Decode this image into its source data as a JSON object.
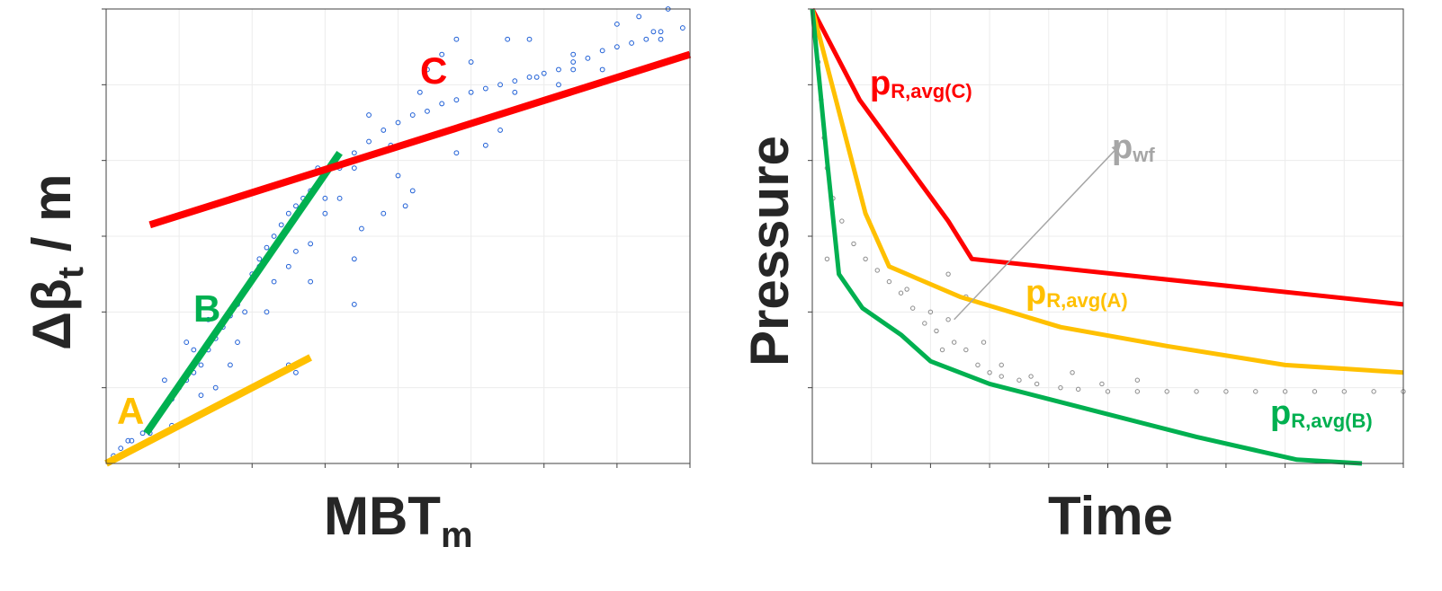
{
  "chart_data": [
    {
      "type": "scatter",
      "title": "",
      "xlabel": "MBT",
      "xlabel_sub": "m",
      "ylabel": "Δβ",
      "ylabel_sub": "t",
      "ylabel_tail": " / m",
      "xlim": [
        0,
        8
      ],
      "ylim": [
        0,
        6
      ],
      "x_ticks": [
        1,
        2,
        3,
        4,
        5,
        6,
        7,
        8
      ],
      "y_ticks": [
        1,
        2,
        3,
        4,
        5,
        6
      ],
      "grid": true,
      "tick_labels_shown": false,
      "scatter": {
        "name": "measured data",
        "color": "#1f5fd6",
        "points": [
          [
            0.1,
            0.1
          ],
          [
            0.2,
            0.2
          ],
          [
            0.35,
            0.3
          ],
          [
            0.5,
            0.4
          ],
          [
            0.6,
            0.45
          ],
          [
            0.7,
            0.6
          ],
          [
            0.8,
            0.75
          ],
          [
            0.9,
            0.85
          ],
          [
            1.0,
            1.0
          ],
          [
            1.1,
            1.1
          ],
          [
            1.2,
            1.2
          ],
          [
            1.3,
            1.3
          ],
          [
            1.4,
            1.5
          ],
          [
            1.5,
            1.65
          ],
          [
            1.6,
            1.8
          ],
          [
            1.7,
            1.95
          ],
          [
            1.8,
            2.1
          ],
          [
            1.9,
            2.3
          ],
          [
            2.0,
            2.5
          ],
          [
            2.1,
            2.7
          ],
          [
            2.2,
            2.85
          ],
          [
            2.3,
            3.0
          ],
          [
            2.4,
            3.15
          ],
          [
            2.5,
            3.3
          ],
          [
            2.6,
            3.4
          ],
          [
            2.7,
            3.5
          ],
          [
            2.8,
            3.6
          ],
          [
            2.9,
            3.7
          ],
          [
            3.0,
            3.8
          ],
          [
            3.2,
            3.95
          ],
          [
            3.4,
            4.1
          ],
          [
            3.6,
            4.25
          ],
          [
            3.8,
            4.4
          ],
          [
            4.0,
            4.5
          ],
          [
            4.2,
            4.6
          ],
          [
            4.4,
            4.65
          ],
          [
            4.6,
            4.75
          ],
          [
            4.8,
            4.8
          ],
          [
            5.0,
            4.9
          ],
          [
            5.2,
            4.95
          ],
          [
            5.4,
            5.0
          ],
          [
            5.6,
            5.05
          ],
          [
            5.8,
            5.1
          ],
          [
            6.0,
            5.15
          ],
          [
            6.2,
            5.2
          ],
          [
            6.4,
            5.3
          ],
          [
            6.6,
            5.35
          ],
          [
            6.8,
            5.45
          ],
          [
            7.0,
            5.5
          ],
          [
            7.2,
            5.55
          ],
          [
            7.4,
            5.6
          ],
          [
            7.6,
            5.7
          ],
          [
            7.9,
            5.75
          ],
          [
            3.4,
            2.7
          ],
          [
            3.8,
            3.3
          ],
          [
            2.8,
            2.4
          ],
          [
            3.5,
            3.1
          ],
          [
            4.1,
            3.4
          ],
          [
            4.2,
            3.6
          ],
          [
            4.0,
            3.8
          ],
          [
            3.2,
            3.5
          ],
          [
            2.5,
            2.6
          ],
          [
            1.7,
            1.3
          ],
          [
            2.5,
            1.3
          ],
          [
            3.4,
            2.1
          ],
          [
            2.6,
            2.8
          ],
          [
            4.4,
            5.2
          ],
          [
            5.4,
            4.4
          ],
          [
            5.8,
            5.6
          ],
          [
            3.0,
            3.3
          ],
          [
            2.2,
            2.0
          ],
          [
            1.5,
            1.0
          ],
          [
            1.2,
            1.5
          ],
          [
            0.9,
            0.5
          ],
          [
            3.6,
            4.6
          ],
          [
            4.6,
            5.4
          ],
          [
            5.5,
            5.6
          ],
          [
            7.3,
            5.9
          ],
          [
            6.4,
            5.2
          ],
          [
            6.8,
            5.2
          ],
          [
            5.2,
            4.2
          ],
          [
            4.8,
            4.1
          ],
          [
            3.9,
            4.2
          ],
          [
            3.0,
            3.5
          ],
          [
            2.7,
            3.4
          ],
          [
            1.4,
            1.9
          ],
          [
            1.1,
            1.6
          ],
          [
            0.8,
            1.1
          ],
          [
            4.8,
            5.6
          ],
          [
            7.0,
            5.8
          ],
          [
            7.6,
            5.6
          ],
          [
            6.2,
            5.0
          ],
          [
            5.9,
            5.1
          ],
          [
            2.1,
            2.6
          ],
          [
            1.9,
            2.0
          ],
          [
            1.8,
            1.6
          ],
          [
            3.2,
            3.9
          ],
          [
            3.4,
            3.9
          ],
          [
            4.3,
            4.9
          ],
          [
            5.0,
            5.3
          ],
          [
            5.6,
            4.9
          ],
          [
            6.0,
            4.8
          ],
          [
            6.4,
            5.4
          ],
          [
            7.7,
            6.0
          ],
          [
            7.5,
            5.7
          ],
          [
            2.9,
            3.9
          ],
          [
            2.3,
            2.4
          ],
          [
            0.6,
            0.4
          ],
          [
            0.4,
            0.2
          ],
          [
            0.3,
            0.3
          ],
          [
            1.3,
            0.9
          ],
          [
            2.6,
            1.2
          ],
          [
            2.8,
            2.9
          ]
        ]
      },
      "lines": [
        {
          "name": "A",
          "color": "#ffc000",
          "points": [
            [
              0.0,
              0.0
            ],
            [
              2.8,
              1.4
            ]
          ]
        },
        {
          "name": "B",
          "color": "#00b050",
          "points": [
            [
              0.55,
              0.4
            ],
            [
              3.2,
              4.1
            ]
          ]
        },
        {
          "name": "C",
          "color": "#ff0000",
          "points": [
            [
              0.6,
              3.15
            ],
            [
              8.0,
              5.4
            ]
          ]
        }
      ],
      "annotations": [
        "A",
        "B",
        "C"
      ]
    },
    {
      "type": "line",
      "title": "",
      "xlabel": "Time",
      "ylabel": "Pressure",
      "xlim": [
        0,
        10
      ],
      "ylim": [
        0,
        6
      ],
      "x_ticks": [
        1,
        2,
        3,
        4,
        5,
        6,
        7,
        8,
        9,
        10
      ],
      "y_ticks": [
        1,
        2,
        3,
        4,
        5,
        6
      ],
      "grid": true,
      "tick_labels_shown": false,
      "series": [
        {
          "name": "pR,avg(C)",
          "label_main": "p",
          "label_sub": "R,avg(C)",
          "color": "#ff0000",
          "points": [
            [
              0.0,
              6.0
            ],
            [
              0.8,
              4.8
            ],
            [
              2.3,
              3.2
            ],
            [
              2.7,
              2.7
            ],
            [
              10.0,
              2.1
            ]
          ]
        },
        {
          "name": "pR,avg(A)",
          "label_main": "p",
          "label_sub": "R,avg(A)",
          "color": "#ffc000",
          "points": [
            [
              0.0,
              6.0
            ],
            [
              0.5,
              4.5
            ],
            [
              0.9,
              3.3
            ],
            [
              1.3,
              2.6
            ],
            [
              2.5,
              2.2
            ],
            [
              4.2,
              1.8
            ],
            [
              6.0,
              1.55
            ],
            [
              8.0,
              1.3
            ],
            [
              10.0,
              1.2
            ]
          ]
        },
        {
          "name": "pR,avg(B)",
          "label_main": "p",
          "label_sub": "R,avg(B)",
          "color": "#00b050",
          "points": [
            [
              0.0,
              6.0
            ],
            [
              0.25,
              4.0
            ],
            [
              0.45,
              2.5
            ],
            [
              0.85,
              2.05
            ],
            [
              1.5,
              1.7
            ],
            [
              2.0,
              1.35
            ],
            [
              3.0,
              1.05
            ],
            [
              4.0,
              0.85
            ],
            [
              5.0,
              0.65
            ],
            [
              6.5,
              0.35
            ],
            [
              8.2,
              0.05
            ],
            [
              9.3,
              0.0
            ]
          ]
        },
        {
          "name": "pwf",
          "label_main": "p",
          "label_sub": "wf",
          "color": "#8c8c8c",
          "style": "markers",
          "points": [
            [
              0.05,
              5.8
            ],
            [
              0.1,
              5.3
            ],
            [
              0.15,
              4.8
            ],
            [
              0.2,
              4.3
            ],
            [
              0.25,
              3.9
            ],
            [
              0.35,
              3.5
            ],
            [
              0.5,
              3.2
            ],
            [
              0.7,
              2.9
            ],
            [
              0.9,
              2.7
            ],
            [
              1.1,
              2.55
            ],
            [
              1.3,
              2.4
            ],
            [
              1.5,
              2.25
            ],
            [
              1.7,
              2.05
            ],
            [
              1.9,
              1.85
            ],
            [
              2.1,
              1.75
            ],
            [
              2.3,
              1.9
            ],
            [
              2.4,
              1.6
            ],
            [
              2.6,
              1.5
            ],
            [
              2.8,
              1.3
            ],
            [
              3.0,
              1.2
            ],
            [
              3.2,
              1.15
            ],
            [
              3.5,
              1.1
            ],
            [
              3.8,
              1.05
            ],
            [
              4.2,
              1.0
            ],
            [
              4.5,
              0.98
            ],
            [
              5.0,
              0.95
            ],
            [
              5.5,
              0.95
            ],
            [
              6.0,
              0.95
            ],
            [
              6.5,
              0.95
            ],
            [
              7.0,
              0.95
            ],
            [
              7.5,
              0.95
            ],
            [
              8.0,
              0.95
            ],
            [
              8.5,
              0.95
            ],
            [
              9.0,
              0.95
            ],
            [
              9.5,
              0.95
            ],
            [
              10.0,
              0.95
            ],
            [
              2.3,
              2.5
            ],
            [
              2.6,
              2.2
            ],
            [
              3.2,
              1.3
            ],
            [
              4.4,
              1.2
            ],
            [
              5.5,
              1.1
            ],
            [
              0.25,
              2.7
            ],
            [
              1.6,
              2.3
            ],
            [
              2.2,
              1.5
            ],
            [
              2.9,
              1.6
            ],
            [
              3.7,
              1.15
            ],
            [
              4.9,
              1.05
            ],
            [
              2.0,
              2.0
            ]
          ]
        }
      ],
      "arrow": {
        "from": [
          2.4,
          1.9
        ],
        "to": [
          5.2,
          4.2
        ],
        "color": "#a6a6a6"
      }
    }
  ]
}
